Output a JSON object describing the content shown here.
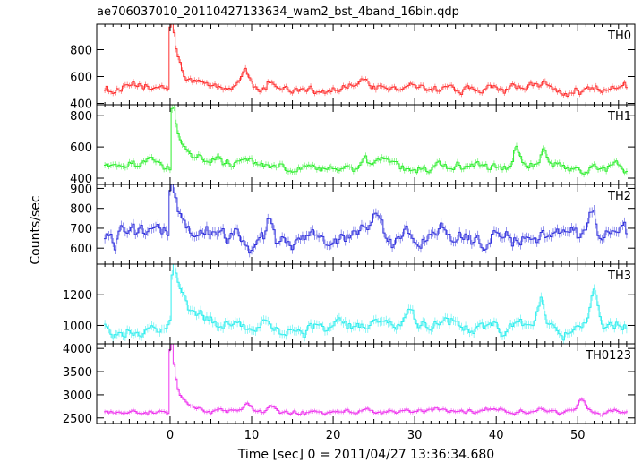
{
  "chart_data": {
    "type": "line",
    "title": "ae706037010_20110427133634_wam2_bst_4band_16bin.qdp",
    "xlabel": "Time [sec] 0 = 2011/04/27 13:36:34.680",
    "ylabel": "Counts/sec",
    "xlim": [
      -9,
      57
    ],
    "xticks": [
      0,
      10,
      20,
      30,
      40,
      50
    ],
    "grid": false,
    "legend": "none",
    "panels": [
      {
        "name": "TH0",
        "color": "#ff3030",
        "ylim": [
          390,
          990
        ],
        "yticks": [
          400,
          600,
          800
        ],
        "baseline": 510,
        "noise": 45,
        "peak": {
          "t": 0.2,
          "value": 960,
          "decay": 0.6,
          "tail": 140
        },
        "bumps": [
          {
            "t": 9.2,
            "value": 140
          },
          {
            "t": 12.5,
            "value": 70
          },
          {
            "t": 24.0,
            "value": 60
          },
          {
            "t": 45.8,
            "value": 40
          }
        ]
      },
      {
        "name": "TH1",
        "color": "#30ee30",
        "ylim": [
          360,
          870
        ],
        "yticks": [
          400,
          600,
          800
        ],
        "baseline": 470,
        "noise": 40,
        "peak": {
          "t": 0.3,
          "value": 860,
          "decay": 0.4,
          "tail": 180
        },
        "bumps": [
          {
            "t": 42.5,
            "value": 120
          },
          {
            "t": 45.8,
            "value": 110
          },
          {
            "t": 23.8,
            "value": 60
          }
        ]
      },
      {
        "name": "TH2",
        "color": "#3333dd",
        "ylim": [
          520,
          920
        ],
        "yticks": [
          600,
          700,
          800,
          900
        ],
        "baseline": 660,
        "noise": 60,
        "peak": {
          "t": 0.2,
          "value": 900,
          "decay": 0.4,
          "tail": 140
        },
        "bumps": [
          {
            "t": 12.2,
            "value": 120
          },
          {
            "t": 25.5,
            "value": 110
          },
          {
            "t": 51.8,
            "value": 150
          }
        ]
      },
      {
        "name": "TH3",
        "color": "#30eeee",
        "ylim": [
          880,
          1400
        ],
        "yticks": [
          1000,
          1200
        ],
        "baseline": 985,
        "noise": 55,
        "peak": {
          "t": 0.3,
          "value": 1330,
          "decay": 0.6,
          "tail": 200
        },
        "bumps": [
          {
            "t": 45.5,
            "value": 150
          },
          {
            "t": 52.0,
            "value": 210
          },
          {
            "t": 29.5,
            "value": 80
          }
        ]
      },
      {
        "name": "TH0123",
        "color": "#ee33ee",
        "ylim": [
          2380,
          4100
        ],
        "yticks": [
          2500,
          3000,
          3500,
          4000
        ],
        "baseline": 2630,
        "noise": 70,
        "peak": {
          "t": 0.2,
          "value": 4000,
          "decay": 0.5,
          "tail": 330
        },
        "bumps": [
          {
            "t": 9.5,
            "value": 230
          },
          {
            "t": 12.5,
            "value": 140
          },
          {
            "t": 50.5,
            "value": 260
          }
        ]
      }
    ]
  }
}
